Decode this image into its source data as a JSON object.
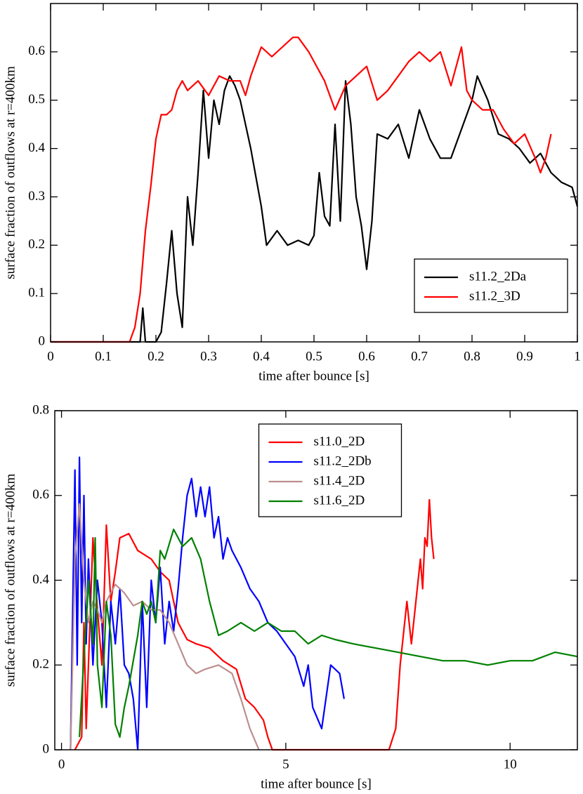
{
  "chart_data": [
    {
      "type": "line",
      "xlabel": "time after bounce [s]",
      "ylabel": "surface fraction of outflows at r=400km",
      "xlim": [
        0,
        1
      ],
      "ylim": [
        0,
        0.7
      ],
      "xticks": [
        0,
        0.1,
        0.2,
        0.3,
        0.4,
        0.5,
        0.6,
        0.7,
        0.8,
        0.9,
        1
      ],
      "yticks": [
        0,
        0.1,
        0.2,
        0.3,
        0.4,
        0.5,
        0.6
      ],
      "legend": "lower right",
      "series": [
        {
          "name": "s11.2_2Da",
          "color": "#000000",
          "x": [
            0,
            0.17,
            0.175,
            0.18,
            0.2,
            0.21,
            0.22,
            0.23,
            0.24,
            0.25,
            0.26,
            0.27,
            0.28,
            0.29,
            0.3,
            0.31,
            0.32,
            0.33,
            0.34,
            0.35,
            0.36,
            0.38,
            0.4,
            0.41,
            0.43,
            0.45,
            0.47,
            0.49,
            0.5,
            0.51,
            0.52,
            0.53,
            0.54,
            0.55,
            0.56,
            0.57,
            0.58,
            0.59,
            0.6,
            0.61,
            0.62,
            0.64,
            0.66,
            0.68,
            0.7,
            0.72,
            0.74,
            0.76,
            0.78,
            0.8,
            0.81,
            0.83,
            0.85,
            0.87,
            0.89,
            0.91,
            0.93,
            0.95,
            0.97,
            0.99,
            1
          ],
          "values": [
            0,
            0,
            0.07,
            0,
            0,
            0.02,
            0.12,
            0.23,
            0.1,
            0.03,
            0.3,
            0.2,
            0.35,
            0.52,
            0.38,
            0.5,
            0.45,
            0.52,
            0.55,
            0.53,
            0.5,
            0.4,
            0.28,
            0.2,
            0.23,
            0.2,
            0.21,
            0.2,
            0.22,
            0.35,
            0.26,
            0.24,
            0.45,
            0.25,
            0.54,
            0.45,
            0.3,
            0.24,
            0.15,
            0.25,
            0.43,
            0.42,
            0.45,
            0.38,
            0.48,
            0.42,
            0.38,
            0.38,
            0.44,
            0.5,
            0.55,
            0.5,
            0.43,
            0.42,
            0.4,
            0.37,
            0.39,
            0.35,
            0.33,
            0.32,
            0.28
          ]
        },
        {
          "name": "s11.2_3D",
          "color": "#ff0000",
          "x": [
            0,
            0.15,
            0.16,
            0.17,
            0.18,
            0.19,
            0.2,
            0.21,
            0.22,
            0.23,
            0.24,
            0.25,
            0.26,
            0.28,
            0.3,
            0.32,
            0.34,
            0.36,
            0.37,
            0.38,
            0.39,
            0.4,
            0.42,
            0.44,
            0.46,
            0.47,
            0.49,
            0.5,
            0.52,
            0.54,
            0.56,
            0.58,
            0.6,
            0.62,
            0.64,
            0.66,
            0.68,
            0.7,
            0.72,
            0.74,
            0.76,
            0.78,
            0.79,
            0.8,
            0.82,
            0.84,
            0.86,
            0.88,
            0.9,
            0.92,
            0.93,
            0.94,
            0.95
          ],
          "values": [
            0,
            0,
            0.03,
            0.1,
            0.23,
            0.32,
            0.42,
            0.47,
            0.47,
            0.48,
            0.52,
            0.54,
            0.52,
            0.54,
            0.51,
            0.55,
            0.54,
            0.54,
            0.51,
            0.55,
            0.58,
            0.61,
            0.59,
            0.61,
            0.63,
            0.63,
            0.6,
            0.58,
            0.54,
            0.48,
            0.53,
            0.55,
            0.57,
            0.5,
            0.52,
            0.55,
            0.58,
            0.6,
            0.58,
            0.6,
            0.53,
            0.61,
            0.52,
            0.5,
            0.48,
            0.48,
            0.44,
            0.41,
            0.43,
            0.38,
            0.35,
            0.38,
            0.43
          ]
        }
      ]
    },
    {
      "type": "line",
      "xlabel": "time after bounce [s]",
      "ylabel": "surface fraction of outflows at r=400km",
      "xlim": [
        -0.15,
        11.5
      ],
      "ylim": [
        0,
        0.8
      ],
      "xticks": [
        0,
        5,
        10
      ],
      "yticks": [
        0,
        0.2,
        0.4,
        0.6,
        0.8
      ],
      "legend": "upper center",
      "series": [
        {
          "name": "s11.0_2D",
          "color": "#ff0000",
          "x": [
            0.3,
            0.45,
            0.5,
            0.55,
            0.6,
            0.7,
            0.8,
            0.9,
            1.0,
            1.1,
            1.2,
            1.3,
            1.5,
            1.7,
            2.0,
            2.2,
            2.4,
            2.6,
            2.8,
            3.0,
            3.3,
            3.6,
            3.9,
            4.1,
            4.3,
            4.5,
            4.6,
            4.7,
            5,
            6,
            7,
            7.3,
            7.45,
            7.55,
            7.65,
            7.7,
            7.8,
            7.9,
            8.0,
            8.05,
            8.1,
            8.15,
            8.2,
            8.25,
            8.3
          ],
          "values": [
            0,
            0.03,
            0.3,
            0.05,
            0.2,
            0.5,
            0.33,
            0.2,
            0.53,
            0.35,
            0.42,
            0.5,
            0.51,
            0.47,
            0.45,
            0.42,
            0.4,
            0.3,
            0.26,
            0.25,
            0.24,
            0.21,
            0.19,
            0.12,
            0.1,
            0.07,
            0.03,
            0,
            0,
            0,
            0,
            0,
            0.05,
            0.2,
            0.3,
            0.35,
            0.25,
            0.35,
            0.45,
            0.38,
            0.5,
            0.48,
            0.59,
            0.5,
            0.45
          ]
        },
        {
          "name": "s11.2_2Db",
          "color": "#0000ff",
          "x": [
            0.2,
            0.25,
            0.3,
            0.35,
            0.4,
            0.45,
            0.5,
            0.55,
            0.6,
            0.7,
            0.8,
            0.9,
            1.0,
            1.1,
            1.2,
            1.3,
            1.4,
            1.5,
            1.6,
            1.7,
            1.8,
            1.9,
            2.0,
            2.1,
            2.2,
            2.3,
            2.4,
            2.5,
            2.6,
            2.7,
            2.8,
            2.9,
            3.0,
            3.1,
            3.2,
            3.3,
            3.4,
            3.5,
            3.6,
            3.7,
            3.8,
            4.0,
            4.2,
            4.4,
            4.6,
            4.8,
            5.0,
            5.2,
            5.4,
            5.5,
            5.6,
            5.8,
            6.0,
            6.2,
            6.3
          ],
          "values": [
            0,
            0.33,
            0.66,
            0.2,
            0.69,
            0.3,
            0.6,
            0.25,
            0.45,
            0.2,
            0.4,
            0.3,
            0.1,
            0.35,
            0.25,
            0.38,
            0.2,
            0.18,
            0.12,
            0,
            0.35,
            0.1,
            0.4,
            0.3,
            0.43,
            0.25,
            0.35,
            0.28,
            0.38,
            0.5,
            0.6,
            0.64,
            0.55,
            0.62,
            0.55,
            0.62,
            0.5,
            0.55,
            0.45,
            0.5,
            0.47,
            0.43,
            0.38,
            0.35,
            0.3,
            0.28,
            0.25,
            0.22,
            0.15,
            0.2,
            0.1,
            0.05,
            0.2,
            0.18,
            0.12
          ]
        },
        {
          "name": "s11.4_2D",
          "color": "#bc8f8f",
          "x": [
            0.2,
            0.3,
            0.4,
            0.5,
            0.6,
            0.7,
            0.8,
            0.9,
            1.0,
            1.2,
            1.4,
            1.6,
            1.8,
            2.0,
            2.2,
            2.4,
            2.6,
            2.8,
            3.0,
            3.2,
            3.5,
            3.8,
            4.0,
            4.2,
            4.4
          ],
          "values": [
            0,
            0.45,
            0.58,
            0.4,
            0.3,
            0.35,
            0.33,
            0.3,
            0.35,
            0.39,
            0.37,
            0.34,
            0.35,
            0.33,
            0.33,
            0.3,
            0.25,
            0.2,
            0.18,
            0.19,
            0.2,
            0.18,
            0.12,
            0.05,
            0
          ]
        },
        {
          "name": "s11.6_2D",
          "color": "#008000",
          "x": [
            0.4,
            0.5,
            0.6,
            0.7,
            0.75,
            0.8,
            0.9,
            1.0,
            1.1,
            1.2,
            1.3,
            1.4,
            1.5,
            1.7,
            1.8,
            1.9,
            2.0,
            2.1,
            2.2,
            2.3,
            2.5,
            2.7,
            2.9,
            3.1,
            3.3,
            3.5,
            3.7,
            4.0,
            4.3,
            4.6,
            4.9,
            5.2,
            5.5,
            5.8,
            6.1,
            6.5,
            7.0,
            7.5,
            8.0,
            8.5,
            9.0,
            9.5,
            10.0,
            10.5,
            11.0,
            11.5
          ],
          "values": [
            0.03,
            0.22,
            0.4,
            0.25,
            0.5,
            0.2,
            0.1,
            0.35,
            0.27,
            0.06,
            0.03,
            0.1,
            0.15,
            0.27,
            0.35,
            0.32,
            0.35,
            0.3,
            0.47,
            0.45,
            0.52,
            0.48,
            0.5,
            0.45,
            0.35,
            0.27,
            0.28,
            0.3,
            0.28,
            0.3,
            0.28,
            0.28,
            0.25,
            0.27,
            0.26,
            0.25,
            0.24,
            0.23,
            0.22,
            0.21,
            0.21,
            0.2,
            0.21,
            0.21,
            0.23,
            0.22
          ]
        }
      ]
    }
  ]
}
